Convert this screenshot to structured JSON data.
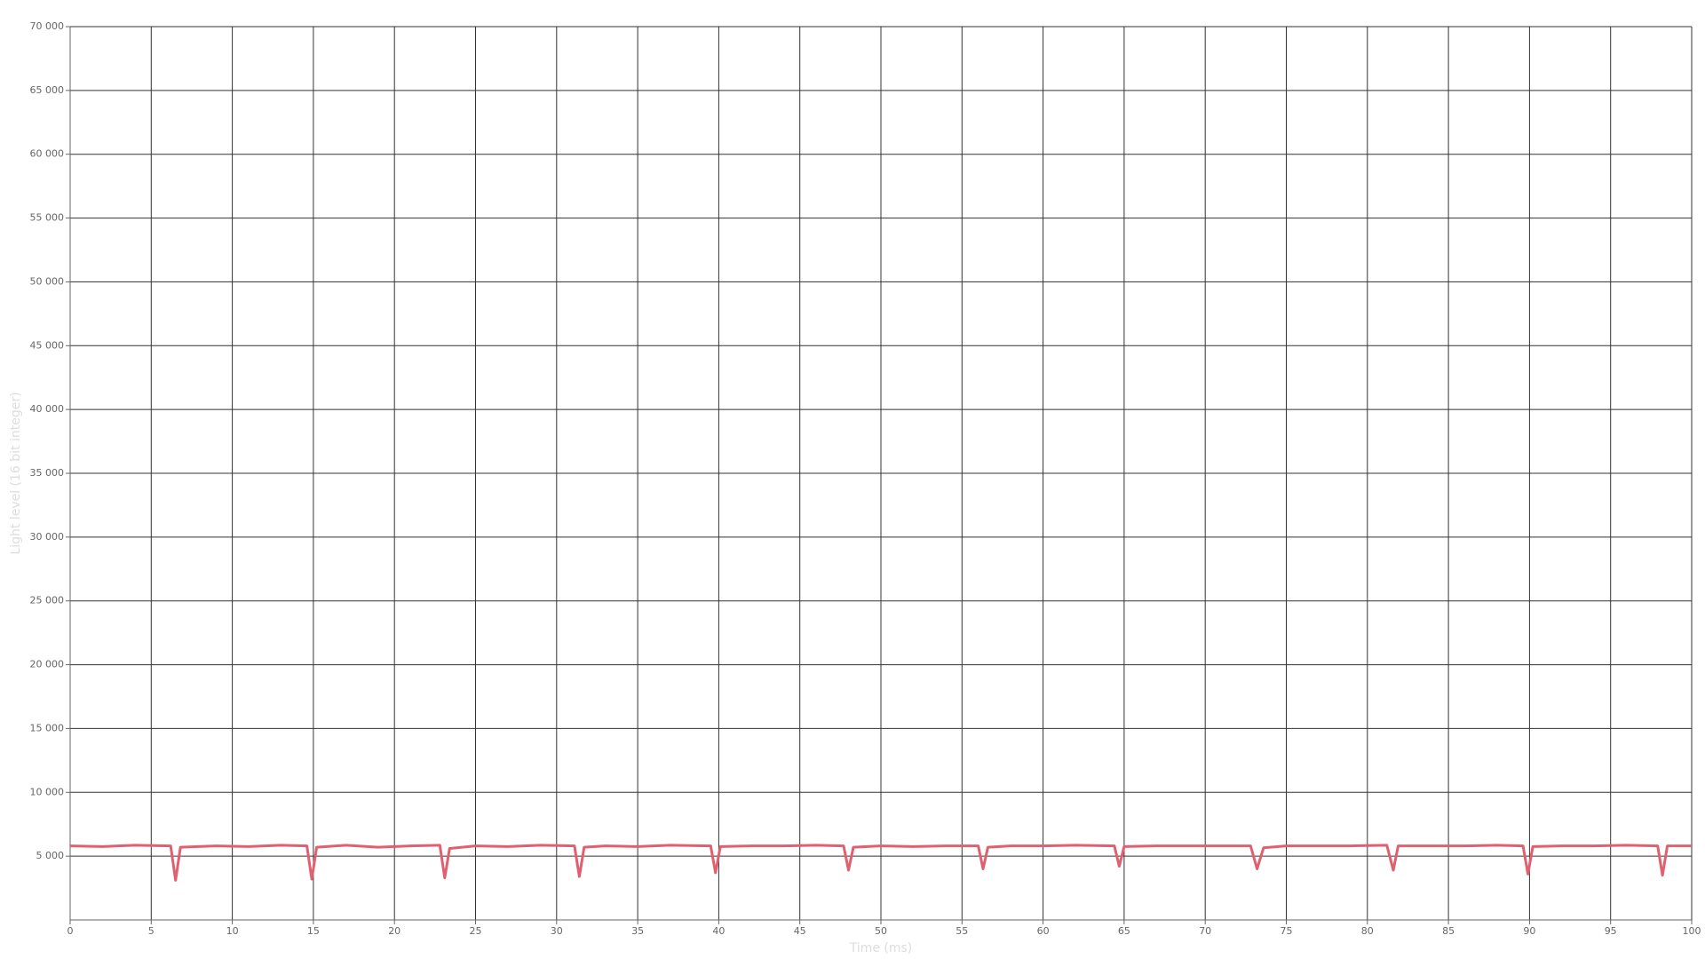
{
  "chart_data": {
    "type": "line",
    "x_label": "Time (ms)",
    "y_label": "Light level (16 bit integer)",
    "xlim": [
      0,
      100
    ],
    "ylim": [
      0,
      70000
    ],
    "xticks": [
      0,
      5,
      10,
      15,
      20,
      25,
      30,
      35,
      40,
      45,
      50,
      55,
      60,
      65,
      70,
      75,
      80,
      85,
      90,
      95,
      100
    ],
    "yticks": [
      {
        "value": 5000,
        "label": "5 000"
      },
      {
        "value": 10000,
        "label": "10 000"
      },
      {
        "value": 15000,
        "label": "15 000"
      },
      {
        "value": 20000,
        "label": "20 000"
      },
      {
        "value": 25000,
        "label": "25 000"
      },
      {
        "value": 30000,
        "label": "30 000"
      },
      {
        "value": 35000,
        "label": "35 000"
      },
      {
        "value": 40000,
        "label": "40 000"
      },
      {
        "value": 45000,
        "label": "45 000"
      },
      {
        "value": 50000,
        "label": "50 000"
      },
      {
        "value": 55000,
        "label": "55 000"
      },
      {
        "value": 60000,
        "label": "60 000"
      },
      {
        "value": 65000,
        "label": "65 000"
      },
      {
        "value": 70000,
        "label": "70 000"
      }
    ],
    "grid": true,
    "x": [
      0,
      2,
      4,
      6.2,
      6.5,
      6.8,
      9,
      11,
      13,
      14.6,
      14.9,
      15.2,
      17,
      19,
      21,
      22.8,
      23.1,
      23.4,
      25,
      27,
      29,
      31.1,
      31.4,
      31.7,
      33,
      35,
      37,
      39.5,
      39.8,
      40.1,
      42,
      44,
      46,
      47.7,
      48.0,
      48.3,
      50,
      52,
      54,
      56.0,
      56.3,
      56.6,
      58,
      60,
      62,
      64.4,
      64.7,
      65.0,
      67,
      69,
      71,
      72.8,
      73.2,
      73.6,
      75,
      77,
      79,
      81.2,
      81.6,
      81.9,
      84,
      86,
      88,
      89.6,
      89.9,
      90.2,
      92,
      94,
      96,
      97.9,
      98.2,
      98.5,
      100
    ],
    "series": [
      {
        "name": "Light level",
        "color": "#e06070",
        "values": [
          5800,
          5750,
          5850,
          5800,
          3100,
          5700,
          5800,
          5750,
          5850,
          5800,
          3200,
          5700,
          5850,
          5700,
          5800,
          5850,
          3300,
          5600,
          5800,
          5750,
          5850,
          5800,
          3400,
          5700,
          5800,
          5750,
          5850,
          5800,
          3700,
          5750,
          5800,
          5800,
          5850,
          5800,
          3900,
          5700,
          5800,
          5750,
          5800,
          5800,
          4000,
          5700,
          5800,
          5800,
          5850,
          5800,
          4200,
          5750,
          5800,
          5800,
          5800,
          5800,
          4000,
          5650,
          5800,
          5800,
          5800,
          5850,
          3900,
          5800,
          5800,
          5800,
          5850,
          5800,
          3600,
          5750,
          5800,
          5800,
          5850,
          5800,
          3500,
          5800,
          5800
        ]
      }
    ]
  }
}
